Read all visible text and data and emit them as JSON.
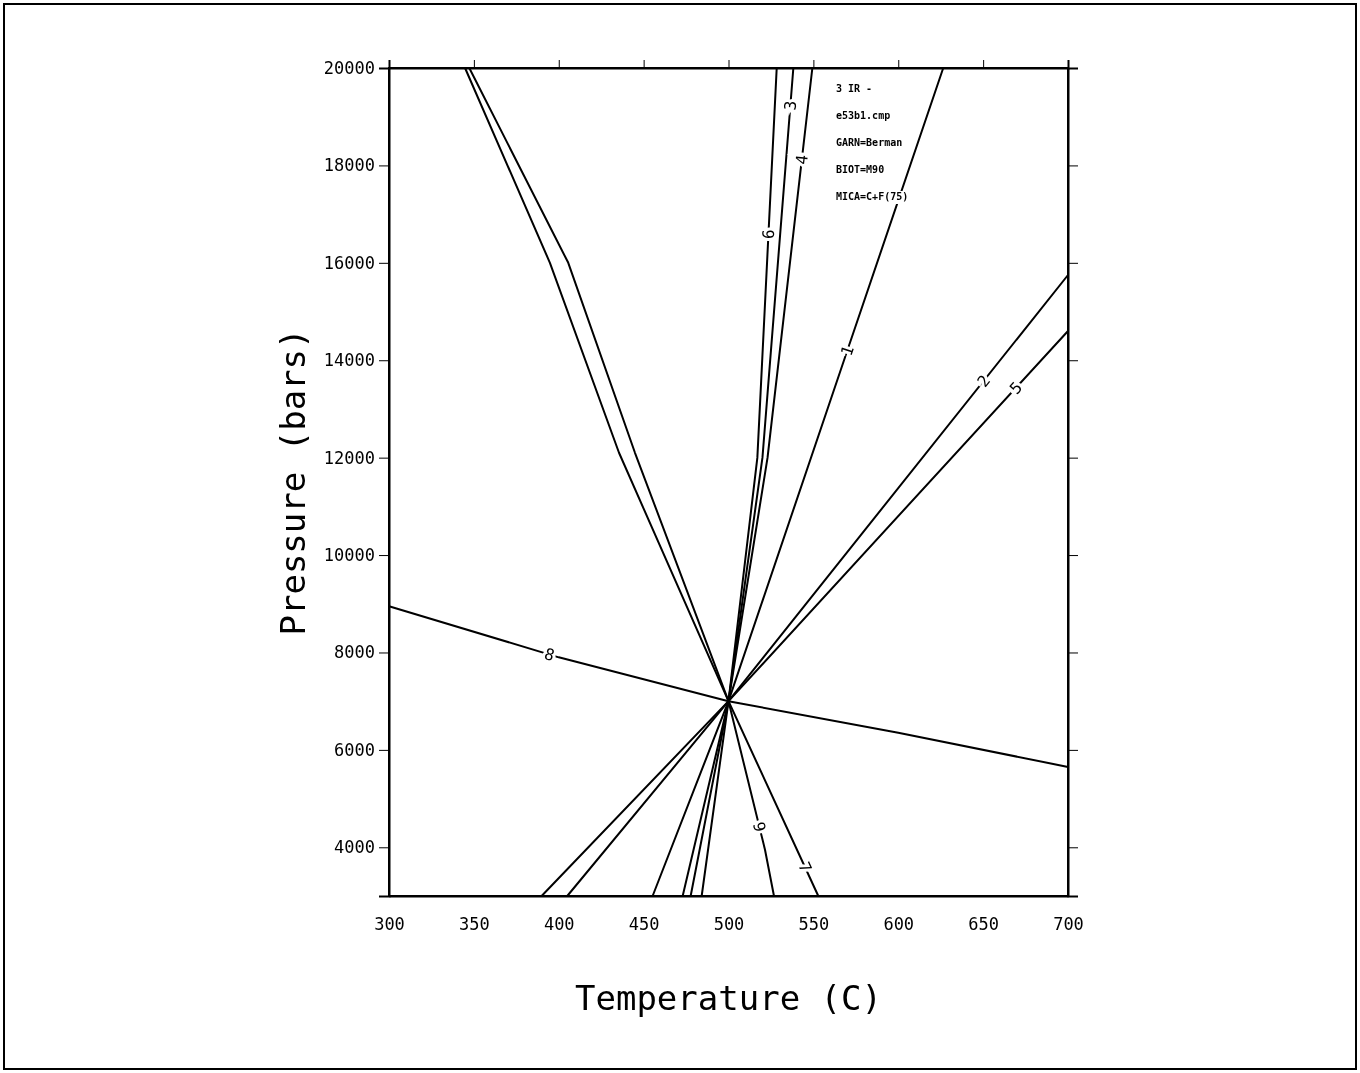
{
  "chart_data": {
    "type": "line",
    "xlabel": "Temperature (C)",
    "ylabel": "Pressure (bars)",
    "xlim": [
      300,
      700
    ],
    "ylim": [
      3000,
      20000
    ],
    "xticks": [
      300,
      350,
      400,
      450,
      500,
      550,
      600,
      650,
      700
    ],
    "yticks": [
      {
        "value": 3000,
        "label": null
      },
      4000,
      6000,
      8000,
      10000,
      12000,
      14000,
      16000,
      18000,
      20000
    ],
    "grid": false,
    "marker": "none",
    "line_style": "solid",
    "annotations": [
      "3 IR -",
      "e53b1.cmp",
      "GARN=Berman",
      "BIOT=M90",
      "MICA=C+F(75)"
    ],
    "series": [
      {
        "name": "1",
        "color": "#000000",
        "x": [
          455.3,
          500,
          570,
          626.5
        ],
        "values": [
          3000,
          7000,
          14200,
          20000
        ]
      },
      {
        "name": "2",
        "color": "#000000",
        "x": [
          405,
          500,
          700
        ],
        "values": [
          3000,
          7000,
          15750
        ]
      },
      {
        "name": "3",
        "color": "#000000",
        "x": [
          477.7,
          500,
          520,
          538.2
        ],
        "values": [
          3000,
          7000,
          12000,
          20000
        ]
      },
      {
        "name": "4",
        "color": "#000000",
        "x": [
          473,
          500,
          523,
          549.4
        ],
        "values": [
          3000,
          7000,
          12000,
          20000
        ]
      },
      {
        "name": "5",
        "color": "#000000",
        "x": [
          389.9,
          500,
          700
        ],
        "values": [
          3000,
          7000,
          14600
        ]
      },
      {
        "name": "6",
        "color": "#000000",
        "x": [
          484.2,
          500,
          517,
          528.4
        ],
        "values": [
          3000,
          7000,
          12000,
          20000
        ]
      },
      {
        "name": "7",
        "color": "#000000",
        "x": [
          344.8,
          394.8,
          435.5,
          500,
          552.9
        ],
        "values": [
          20000,
          16000,
          12100,
          7000,
          3000
        ]
      },
      {
        "name": "8",
        "color": "#000000",
        "x": [
          300,
          400,
          500,
          600,
          700
        ],
        "values": [
          8950,
          7900,
          7000,
          6350,
          5650
        ]
      },
      {
        "name": "9",
        "color": "#000000",
        "x": [
          347.3,
          405.6,
          444.9,
          500,
          521.5,
          526.8
        ],
        "values": [
          20000,
          16000,
          12100,
          7000,
          3950,
          3000
        ]
      }
    ]
  }
}
